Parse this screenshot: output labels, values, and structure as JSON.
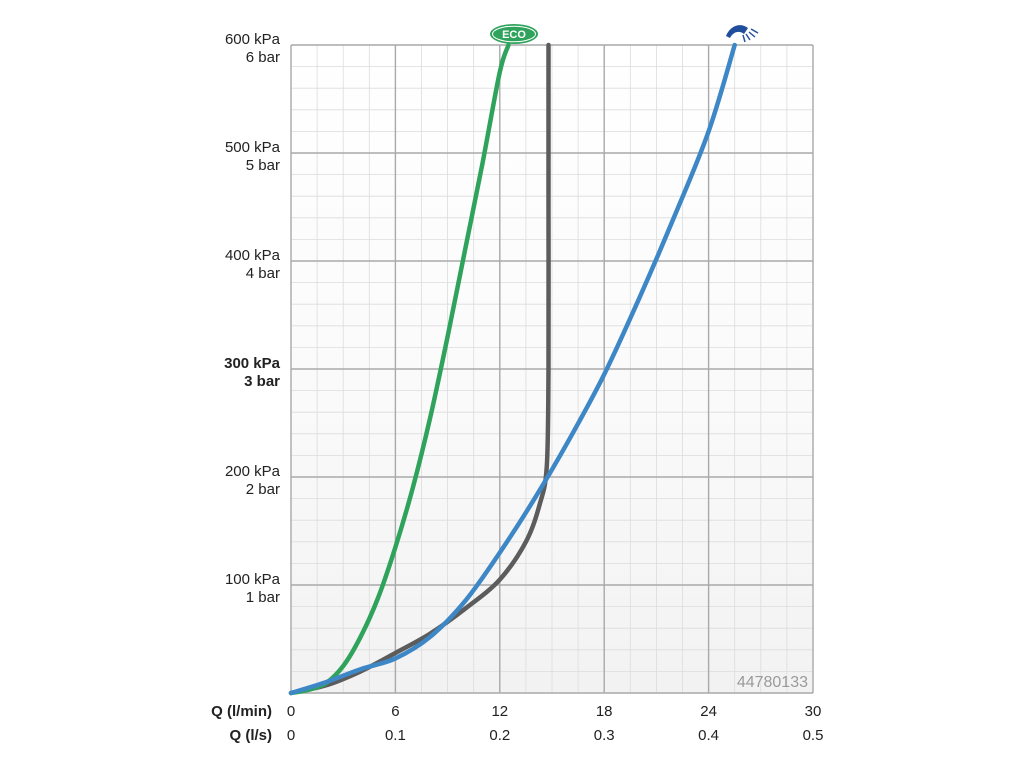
{
  "chart_data": {
    "type": "line",
    "y_ticks": [
      {
        "value": 0,
        "kpa": "",
        "bar": "",
        "bold": false
      },
      {
        "value": 100,
        "kpa": "100 kPa",
        "bar": "1 bar",
        "bold": false
      },
      {
        "value": 200,
        "kpa": "200 kPa",
        "bar": "2 bar",
        "bold": false
      },
      {
        "value": 300,
        "kpa": "300 kPa",
        "bar": "3 bar",
        "bold": true
      },
      {
        "value": 400,
        "kpa": "400 kPa",
        "bar": "4 bar",
        "bold": false
      },
      {
        "value": 500,
        "kpa": "500 kPa",
        "bar": "5 bar",
        "bold": false
      },
      {
        "value": 600,
        "kpa": "600 kPa",
        "bar": "6 bar",
        "bold": false
      }
    ],
    "ylim": [
      0,
      600
    ],
    "xlim": [
      0,
      30
    ],
    "x_ticks_lmin": [
      "0",
      "6",
      "12",
      "18",
      "24",
      "30"
    ],
    "x_ticks_ls": [
      "0",
      "0.1",
      "0.2",
      "0.3",
      "0.4",
      "0.5"
    ],
    "x_tick_values": [
      0,
      6,
      12,
      18,
      24,
      30
    ],
    "xlabel_lmin": "Q (l/min)",
    "xlabel_ls": "Q (l/s)",
    "grid": true,
    "watermark": "44780133",
    "series": [
      {
        "name": "ECO",
        "color": "#2fa35c",
        "points": [
          [
            0,
            0
          ],
          [
            1,
            3
          ],
          [
            2,
            9
          ],
          [
            3,
            25
          ],
          [
            4,
            52
          ],
          [
            5,
            88
          ],
          [
            6,
            135
          ],
          [
            7,
            190
          ],
          [
            8,
            255
          ],
          [
            9,
            330
          ],
          [
            10,
            410
          ],
          [
            11,
            490
          ],
          [
            12,
            575
          ],
          [
            12.5,
            600
          ]
        ]
      },
      {
        "name": "shower",
        "color": "#3d87c6",
        "points": [
          [
            0,
            0
          ],
          [
            2,
            10
          ],
          [
            4,
            22
          ],
          [
            6,
            32
          ],
          [
            8,
            52
          ],
          [
            10,
            85
          ],
          [
            12,
            130
          ],
          [
            14,
            180
          ],
          [
            16,
            235
          ],
          [
            18,
            295
          ],
          [
            20,
            365
          ],
          [
            22,
            440
          ],
          [
            24,
            520
          ],
          [
            25.5,
            600
          ]
        ]
      },
      {
        "name": "",
        "color": "#5c5c5c",
        "points": [
          [
            0,
            0
          ],
          [
            2,
            7
          ],
          [
            4,
            20
          ],
          [
            6,
            37
          ],
          [
            8,
            55
          ],
          [
            10,
            78
          ],
          [
            12,
            105
          ],
          [
            13.5,
            140
          ],
          [
            14.3,
            175
          ],
          [
            14.7,
            210
          ],
          [
            14.8,
            300
          ],
          [
            14.8,
            450
          ],
          [
            14.8,
            600
          ]
        ]
      }
    ]
  },
  "legend_labels": {
    "eco": "ECO"
  },
  "icons": {
    "eco_badge": "eco-badge-icon",
    "shower": "shower-head-icon"
  }
}
